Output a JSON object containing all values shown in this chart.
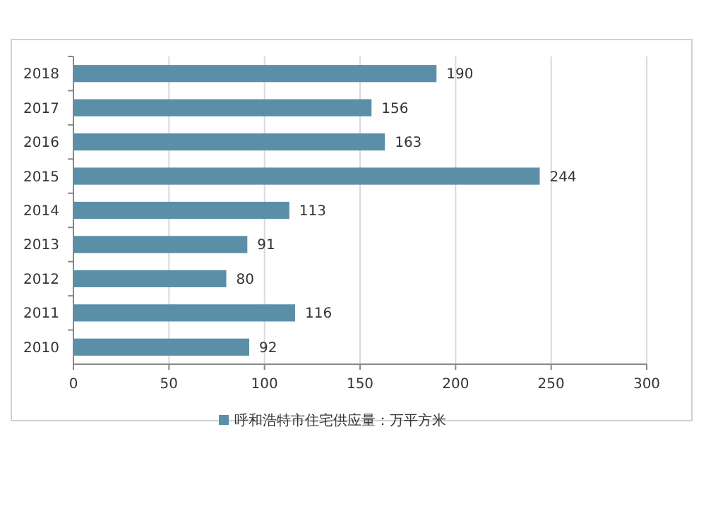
{
  "chart_data": {
    "type": "bar",
    "orientation": "horizontal",
    "categories": [
      "2018",
      "2017",
      "2016",
      "2015",
      "2014",
      "2013",
      "2012",
      "2011",
      "2010"
    ],
    "series": [
      {
        "name": "呼和浩特市住宅供应量：万平方米",
        "color": "#5b8fa8",
        "values": [
          190,
          156,
          163,
          244,
          113,
          91,
          80,
          116,
          92
        ]
      }
    ],
    "xlim": [
      0,
      300
    ],
    "xticks": [
      0,
      50,
      100,
      150,
      200,
      250,
      300
    ],
    "grid": "x",
    "legend": "bottom",
    "data_labels": true
  }
}
